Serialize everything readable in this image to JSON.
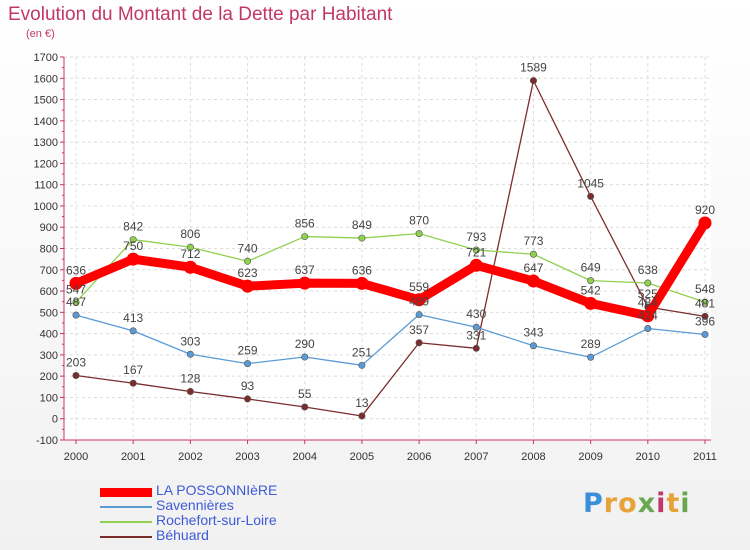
{
  "header": {
    "title": "Evolution du Montant de la Dette par Habitant",
    "subtitle": "(en €)"
  },
  "logo": {
    "letters": [
      "P",
      "r",
      "o",
      "x",
      "i",
      "t",
      "i"
    ],
    "colors": [
      "#3a8fd8",
      "#e8a23a",
      "#e8a23a",
      "#6aa84f",
      "#c13769",
      "#e8a23a",
      "#6aa84f"
    ]
  },
  "chart_data": {
    "type": "line",
    "title": "Evolution du Montant de la Dette par Habitant",
    "ylabel": "(en €)",
    "x": [
      "2000",
      "2001",
      "2002",
      "2003",
      "2004",
      "2005",
      "2006",
      "2007",
      "2008",
      "2009",
      "2010",
      "2011"
    ],
    "yticks": [
      "-100",
      "0",
      "100",
      "200",
      "300",
      "400",
      "500",
      "600",
      "700",
      "800",
      "900",
      "1000",
      "1100",
      "1200",
      "1300",
      "1400",
      "1500",
      "1600",
      "1700"
    ],
    "ylim": [
      -100,
      1700
    ],
    "grid": true,
    "legend_position": "bottom-left",
    "series": [
      {
        "name": "LA POSSONNIèRE",
        "color": "#ff0000",
        "values": [
          636,
          750,
          712,
          623,
          637,
          636,
          559,
          721,
          647,
          542,
          484,
          920
        ]
      },
      {
        "name": "Savennières",
        "color": "#5b9bd5",
        "values": [
          487,
          413,
          303,
          259,
          290,
          251,
          489,
          430,
          343,
          289,
          424,
          396
        ]
      },
      {
        "name": "Rochefort-sur-Loire",
        "color": "#8fd14f",
        "values": [
          547,
          842,
          806,
          740,
          856,
          849,
          870,
          793,
          773,
          649,
          638,
          548
        ]
      },
      {
        "name": "Béhuard",
        "color": "#7b2d2d",
        "values": [
          203,
          167,
          128,
          93,
          55,
          13,
          357,
          331,
          1589,
          1045,
          525,
          481
        ]
      }
    ]
  }
}
